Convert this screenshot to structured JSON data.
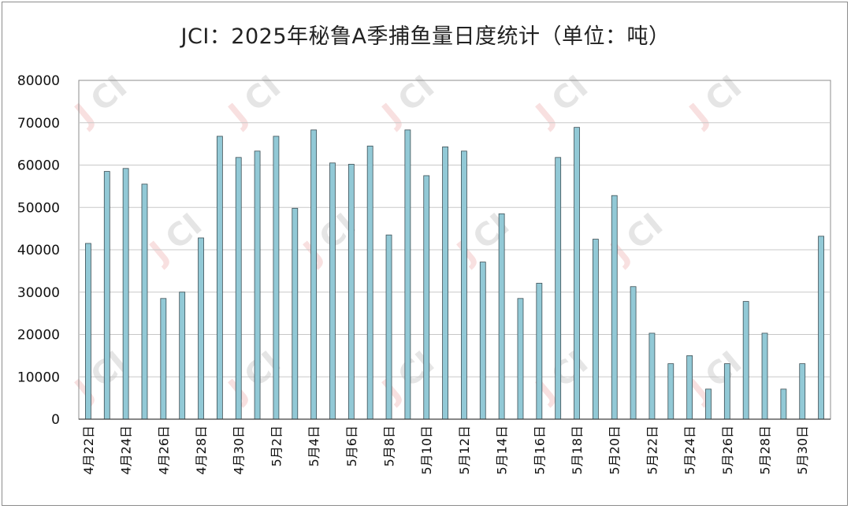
{
  "chart_data": {
    "type": "bar",
    "title": "JCI：2025年秘鲁A季捕鱼量日度统计（单位：吨）",
    "xlabel": "",
    "ylabel": "",
    "ylim": [
      0,
      80000
    ],
    "yticks": [
      0,
      10000,
      20000,
      30000,
      40000,
      50000,
      60000,
      70000,
      80000
    ],
    "grid": true,
    "legend": "none",
    "watermark": "JCI",
    "bar_color": "#92c9d6",
    "bar_edge_color": "#3d4f55",
    "categories": [
      "4月22日",
      "4月23日",
      "4月24日",
      "4月25日",
      "4月26日",
      "4月27日",
      "4月28日",
      "4月29日",
      "4月30日",
      "5月1日",
      "5月2日",
      "5月3日",
      "5月4日",
      "5月5日",
      "5月6日",
      "5月7日",
      "5月8日",
      "5月9日",
      "5月10日",
      "5月11日",
      "5月12日",
      "5月13日",
      "5月14日",
      "5月15日",
      "5月16日",
      "5月17日",
      "5月18日",
      "5月19日",
      "5月20日",
      "5月21日",
      "5月22日",
      "5月23日",
      "5月24日",
      "5月25日",
      "5月26日",
      "5月27日",
      "5月28日",
      "5月29日",
      "5月30日",
      "5月31日"
    ],
    "tick_labels": [
      "4月22日",
      "4月24日",
      "4月26日",
      "4月28日",
      "4月30日",
      "5月2日",
      "5月4日",
      "5月6日",
      "5月8日",
      "5月10日",
      "5月12日",
      "5月14日",
      "5月16日",
      "5月18日",
      "5月20日",
      "5月22日",
      "5月24日",
      "5月26日",
      "5月28日",
      "5月30日"
    ],
    "values": [
      41500,
      58500,
      59200,
      55500,
      28500,
      30000,
      42800,
      66800,
      61800,
      63300,
      66800,
      49800,
      68300,
      60500,
      60200,
      64500,
      43500,
      68300,
      57500,
      64300,
      63300,
      37100,
      48500,
      28500,
      32100,
      61800,
      68900,
      42500,
      52800,
      31300,
      20300,
      13100,
      15000,
      7100,
      13100,
      27800,
      20300,
      7100,
      13100,
      43200
    ]
  }
}
